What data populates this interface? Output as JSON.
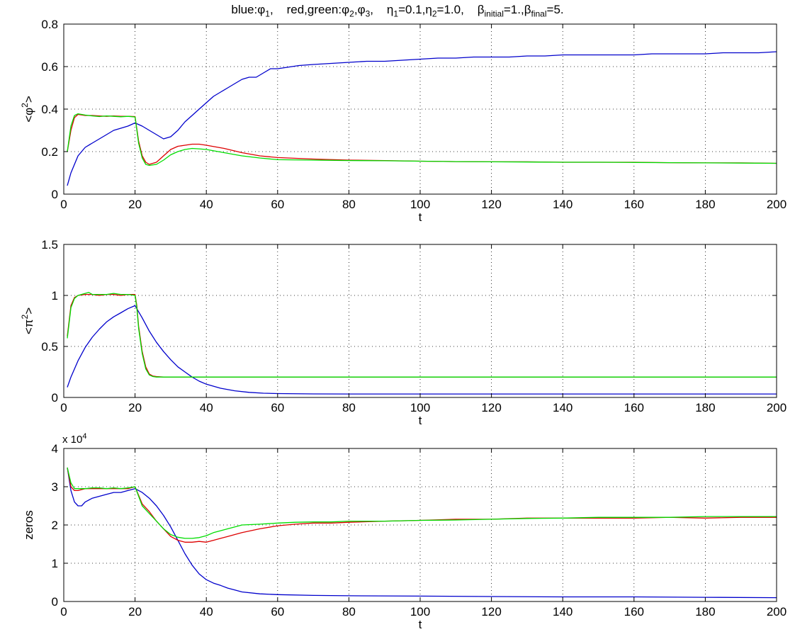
{
  "figure": {
    "title": {
      "t1_pre": "blue:",
      "t1_sym": "φ",
      "t1_sub": "1",
      "t1_post": ",",
      "t2_pre": "red,green:",
      "t2_sym_a": "φ",
      "t2_sub_a": "2",
      "t2_mid": ",",
      "t2_sym_b": "φ",
      "t2_sub_b": "3",
      "t2_post": ",",
      "t3_sym_a": "η",
      "t3_sub_a": "1",
      "t3_mid": "=0.1,",
      "t3_sym_b": "η",
      "t3_sub_b": "2",
      "t3_post": "=1.0,",
      "t4_sym_a": "β",
      "t4_sub_a": "initial",
      "t4_mid": "=1.,",
      "t4_sym_b": "β",
      "t4_sub_b": "final",
      "t4_post": "=5."
    },
    "colors": {
      "blue": "#0000cc",
      "red": "#dd0000",
      "green": "#00dd00",
      "axis": "#000000",
      "grid": "#000000"
    }
  },
  "chart_data": [
    {
      "type": "line",
      "xlabel": "t",
      "ylabel_base": "<φ",
      "ylabel_sup": "2",
      "ylabel_end": ">",
      "xlim": [
        0,
        200
      ],
      "ylim": [
        0,
        0.8
      ],
      "xticks": [
        0,
        20,
        40,
        60,
        80,
        100,
        120,
        140,
        160,
        180,
        200
      ],
      "yticks": [
        0,
        0.2,
        0.4,
        0.6,
        0.8
      ],
      "ytick_labels": [
        "0",
        "0.2",
        "0.4",
        "0.6",
        "0.8"
      ],
      "grid": true,
      "series": [
        {
          "color": "blue",
          "x": [
            1,
            2,
            4,
            6,
            8,
            10,
            12,
            14,
            16,
            18,
            20,
            22,
            24,
            26,
            28,
            30,
            32,
            34,
            36,
            38,
            40,
            42,
            44,
            46,
            48,
            50,
            52,
            54,
            56,
            58,
            60,
            62,
            64,
            66,
            70,
            75,
            80,
            85,
            90,
            95,
            100,
            105,
            110,
            115,
            120,
            125,
            130,
            135,
            140,
            145,
            150,
            155,
            160,
            165,
            170,
            175,
            180,
            185,
            190,
            195,
            200
          ],
          "y": [
            0.04,
            0.1,
            0.18,
            0.22,
            0.24,
            0.26,
            0.28,
            0.3,
            0.31,
            0.32,
            0.335,
            0.32,
            0.3,
            0.28,
            0.26,
            0.27,
            0.3,
            0.34,
            0.37,
            0.4,
            0.43,
            0.46,
            0.48,
            0.5,
            0.52,
            0.54,
            0.55,
            0.55,
            0.57,
            0.59,
            0.59,
            0.595,
            0.6,
            0.605,
            0.61,
            0.615,
            0.62,
            0.625,
            0.625,
            0.63,
            0.635,
            0.64,
            0.64,
            0.645,
            0.645,
            0.645,
            0.65,
            0.65,
            0.655,
            0.655,
            0.655,
            0.655,
            0.655,
            0.66,
            0.66,
            0.66,
            0.66,
            0.665,
            0.665,
            0.665,
            0.67
          ]
        },
        {
          "color": "red",
          "x": [
            1,
            2,
            3,
            4,
            6,
            8,
            10,
            12,
            14,
            16,
            18,
            20,
            21,
            22,
            23,
            24,
            26,
            28,
            30,
            32,
            34,
            36,
            38,
            40,
            45,
            50,
            55,
            60,
            70,
            80,
            90,
            100,
            110,
            120,
            130,
            140,
            150,
            160,
            170,
            180,
            190,
            200
          ],
          "y": [
            0.2,
            0.3,
            0.36,
            0.375,
            0.37,
            0.37,
            0.368,
            0.366,
            0.368,
            0.366,
            0.366,
            0.365,
            0.25,
            0.18,
            0.15,
            0.14,
            0.15,
            0.18,
            0.21,
            0.225,
            0.23,
            0.235,
            0.235,
            0.23,
            0.215,
            0.195,
            0.18,
            0.172,
            0.165,
            0.16,
            0.158,
            0.155,
            0.153,
            0.152,
            0.152,
            0.15,
            0.15,
            0.15,
            0.148,
            0.147,
            0.147,
            0.145
          ]
        },
        {
          "color": "green",
          "x": [
            1,
            2,
            3,
            4,
            6,
            8,
            10,
            12,
            14,
            16,
            18,
            20,
            21,
            22,
            23,
            24,
            26,
            28,
            30,
            32,
            34,
            36,
            38,
            40,
            45,
            50,
            55,
            60,
            70,
            80,
            90,
            100,
            110,
            120,
            130,
            140,
            150,
            160,
            170,
            180,
            190,
            200
          ],
          "y": [
            0.2,
            0.32,
            0.37,
            0.378,
            0.372,
            0.368,
            0.365,
            0.368,
            0.366,
            0.364,
            0.366,
            0.363,
            0.24,
            0.17,
            0.14,
            0.135,
            0.14,
            0.16,
            0.185,
            0.2,
            0.21,
            0.215,
            0.213,
            0.21,
            0.195,
            0.18,
            0.17,
            0.162,
            0.16,
            0.158,
            0.157,
            0.155,
            0.153,
            0.152,
            0.151,
            0.15,
            0.15,
            0.149,
            0.148,
            0.147,
            0.146,
            0.145
          ]
        }
      ]
    },
    {
      "type": "line",
      "xlabel": "t",
      "ylabel_base": "<π",
      "ylabel_sup": "2",
      "ylabel_end": ">",
      "xlim": [
        0,
        200
      ],
      "ylim": [
        0,
        1.5
      ],
      "xticks": [
        0,
        20,
        40,
        60,
        80,
        100,
        120,
        140,
        160,
        180,
        200
      ],
      "yticks": [
        0,
        0.5,
        1,
        1.5
      ],
      "ytick_labels": [
        "0",
        "0.5",
        "1",
        "1.5"
      ],
      "grid": true,
      "series": [
        {
          "color": "blue",
          "x": [
            1,
            2,
            4,
            6,
            8,
            10,
            12,
            14,
            16,
            18,
            20,
            22,
            24,
            26,
            28,
            30,
            32,
            34,
            36,
            38,
            40,
            44,
            48,
            52,
            56,
            60,
            70,
            80,
            100,
            120,
            140,
            160,
            180,
            200
          ],
          "y": [
            0.1,
            0.2,
            0.36,
            0.49,
            0.59,
            0.67,
            0.74,
            0.79,
            0.83,
            0.87,
            0.9,
            0.78,
            0.65,
            0.54,
            0.45,
            0.37,
            0.3,
            0.25,
            0.2,
            0.16,
            0.13,
            0.09,
            0.065,
            0.05,
            0.042,
            0.038,
            0.035,
            0.034,
            0.034,
            0.034,
            0.034,
            0.034,
            0.034,
            0.034
          ]
        },
        {
          "color": "red",
          "x": [
            1,
            2,
            3,
            4,
            6,
            8,
            10,
            12,
            14,
            16,
            18,
            20,
            20.5,
            21,
            22,
            23,
            24,
            25,
            26,
            28,
            30,
            40,
            60,
            80,
            100,
            120,
            140,
            160,
            180,
            200
          ],
          "y": [
            0.6,
            0.9,
            0.98,
            1.0,
            1.01,
            1.01,
            1.0,
            1.01,
            1.01,
            1.0,
            1.01,
            1.01,
            0.9,
            0.7,
            0.45,
            0.3,
            0.23,
            0.21,
            0.205,
            0.2,
            0.2,
            0.2,
            0.2,
            0.2,
            0.2,
            0.2,
            0.2,
            0.2,
            0.2,
            0.2
          ]
        },
        {
          "color": "green",
          "x": [
            1,
            2,
            3,
            4,
            6,
            7,
            8,
            10,
            12,
            14,
            16,
            18,
            20,
            20.5,
            21,
            22,
            23,
            24,
            25,
            26,
            28,
            30,
            40,
            60,
            80,
            100,
            120,
            140,
            160,
            180,
            200
          ],
          "y": [
            0.58,
            0.88,
            0.97,
            1.0,
            1.02,
            1.03,
            1.01,
            1.01,
            1.01,
            1.02,
            1.01,
            1.01,
            1.0,
            0.88,
            0.68,
            0.43,
            0.28,
            0.22,
            0.205,
            0.2,
            0.2,
            0.2,
            0.2,
            0.2,
            0.2,
            0.2,
            0.2,
            0.2,
            0.2,
            0.2,
            0.2
          ]
        }
      ]
    },
    {
      "type": "line",
      "xlabel": "t",
      "ylabel": "zeros",
      "scale_label": "x 10",
      "scale_exp": "4",
      "xlim": [
        0,
        200
      ],
      "ylim": [
        0,
        4
      ],
      "xticks": [
        0,
        20,
        40,
        60,
        80,
        100,
        120,
        140,
        160,
        180,
        200
      ],
      "yticks": [
        0,
        1,
        2,
        3,
        4
      ],
      "ytick_labels": [
        "0",
        "1",
        "2",
        "3",
        "4"
      ],
      "grid": true,
      "series": [
        {
          "color": "blue",
          "x": [
            1,
            2,
            3,
            4,
            5,
            6,
            8,
            10,
            12,
            14,
            16,
            18,
            20,
            22,
            24,
            26,
            28,
            30,
            32,
            34,
            36,
            38,
            40,
            42,
            44,
            46,
            48,
            50,
            55,
            60,
            70,
            80,
            100,
            120,
            140,
            160,
            180,
            200
          ],
          "y": [
            3.5,
            2.9,
            2.6,
            2.5,
            2.5,
            2.6,
            2.7,
            2.75,
            2.8,
            2.85,
            2.85,
            2.9,
            2.95,
            2.85,
            2.7,
            2.5,
            2.25,
            1.95,
            1.6,
            1.25,
            0.95,
            0.72,
            0.57,
            0.48,
            0.42,
            0.35,
            0.3,
            0.25,
            0.2,
            0.18,
            0.16,
            0.15,
            0.14,
            0.13,
            0.12,
            0.12,
            0.11,
            0.1
          ]
        },
        {
          "color": "red",
          "x": [
            1,
            2,
            3,
            4,
            6,
            8,
            10,
            12,
            14,
            16,
            18,
            20,
            22,
            24,
            26,
            28,
            30,
            32,
            34,
            36,
            38,
            40,
            42,
            44,
            46,
            48,
            50,
            55,
            60,
            65,
            70,
            75,
            80,
            90,
            100,
            110,
            120,
            130,
            140,
            150,
            160,
            170,
            180,
            190,
            200
          ],
          "y": [
            3.5,
            3.0,
            2.9,
            2.9,
            2.95,
            2.95,
            2.95,
            2.95,
            2.95,
            2.95,
            2.95,
            3.0,
            2.55,
            2.35,
            2.1,
            1.9,
            1.7,
            1.6,
            1.55,
            1.55,
            1.57,
            1.55,
            1.6,
            1.65,
            1.7,
            1.75,
            1.8,
            1.9,
            1.98,
            2.02,
            2.05,
            2.05,
            2.07,
            2.1,
            2.12,
            2.15,
            2.15,
            2.18,
            2.18,
            2.18,
            2.18,
            2.2,
            2.18,
            2.2,
            2.2
          ]
        },
        {
          "color": "green",
          "x": [
            1,
            2,
            3,
            4,
            6,
            8,
            10,
            12,
            14,
            16,
            18,
            20,
            22,
            24,
            26,
            28,
            30,
            32,
            34,
            36,
            38,
            40,
            42,
            44,
            46,
            48,
            50,
            55,
            60,
            65,
            70,
            75,
            80,
            90,
            100,
            110,
            120,
            130,
            140,
            150,
            160,
            170,
            180,
            190,
            200
          ],
          "y": [
            3.5,
            3.1,
            2.95,
            2.95,
            2.95,
            2.97,
            2.97,
            2.95,
            2.97,
            2.95,
            2.97,
            3.0,
            2.5,
            2.3,
            2.1,
            1.9,
            1.75,
            1.68,
            1.65,
            1.65,
            1.67,
            1.72,
            1.8,
            1.85,
            1.9,
            1.95,
            2.0,
            2.02,
            2.05,
            2.07,
            2.08,
            2.08,
            2.1,
            2.1,
            2.12,
            2.13,
            2.15,
            2.17,
            2.18,
            2.2,
            2.2,
            2.2,
            2.22,
            2.22,
            2.22
          ]
        }
      ]
    }
  ]
}
